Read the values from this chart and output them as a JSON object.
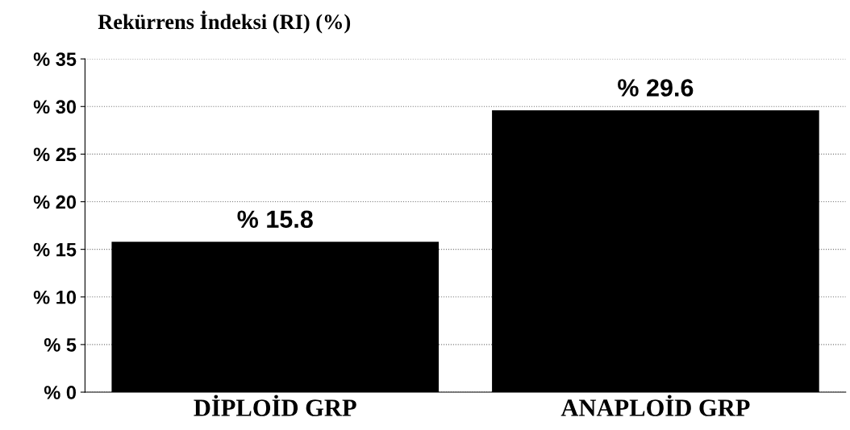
{
  "chart_data": {
    "type": "bar",
    "title": "Rekürrens İndeksi (RI) (%)",
    "categories": [
      "DİPLOİD GRP",
      "ANAPLOİD GRP"
    ],
    "values": [
      15.8,
      29.6
    ],
    "color": "#000000",
    "value_labels": [
      "% 15.8",
      "% 29.6"
    ],
    "ylim": [
      0,
      35
    ],
    "yticks": [
      {
        "value": 0,
        "label": "% 0"
      },
      {
        "value": 5,
        "label": "% 5"
      },
      {
        "value": 10,
        "label": "% 10"
      },
      {
        "value": 15,
        "label": "% 15"
      },
      {
        "value": 20,
        "label": "% 20"
      },
      {
        "value": 25,
        "label": "% 25"
      },
      {
        "value": 30,
        "label": "% 30"
      },
      {
        "value": 35,
        "label": "% 35"
      }
    ],
    "grid": "y",
    "legend": false
  }
}
